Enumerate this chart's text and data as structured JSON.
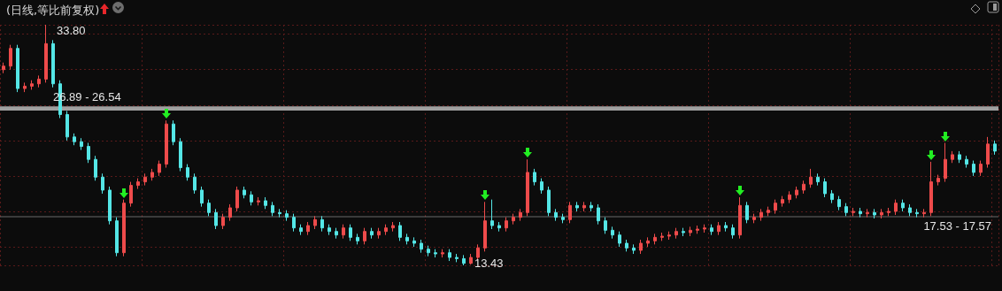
{
  "chart_data": {
    "type": "candlestick",
    "title": "(日线,等比前复权)",
    "categories": [
      null,
      null,
      null,
      null,
      null,
      null,
      null,
      null,
      null,
      null,
      null,
      null,
      null,
      null,
      null,
      null,
      null,
      null,
      null,
      null,
      null,
      null,
      null,
      null,
      null,
      null,
      null,
      null,
      null,
      null,
      null,
      null,
      null,
      null,
      null,
      null,
      null,
      null,
      null,
      null,
      null,
      null,
      null,
      null,
      null,
      null,
      null,
      null,
      null,
      null,
      null,
      null,
      null,
      null,
      null,
      null,
      null,
      null,
      null,
      null,
      null,
      null,
      null,
      null,
      null,
      null,
      null,
      null,
      null,
      null,
      null,
      null,
      null,
      null,
      null,
      null,
      null,
      null,
      null,
      null,
      null,
      null,
      null,
      null,
      null,
      null,
      null,
      null,
      null,
      null,
      null,
      null,
      null,
      null,
      null,
      null,
      null,
      null,
      null,
      null,
      null,
      null,
      null,
      null,
      null,
      null,
      null,
      null,
      null,
      null,
      null,
      null,
      null,
      null,
      null,
      null,
      null,
      null,
      null,
      null,
      null,
      null,
      null,
      null,
      null,
      null,
      null,
      null,
      null,
      null,
      null,
      null,
      null,
      null,
      null,
      null,
      null,
      null,
      null,
      null,
      null
    ],
    "ohlc": [
      [
        30.0,
        30.6,
        29.7,
        30.3
      ],
      [
        30.3,
        32.1,
        30.0,
        31.8
      ],
      [
        31.8,
        32.1,
        28.1,
        28.4
      ],
      [
        28.4,
        28.9,
        28.1,
        28.6
      ],
      [
        28.6,
        29.1,
        28.3,
        28.8
      ],
      [
        28.8,
        29.5,
        28.5,
        29.2
      ],
      [
        29.2,
        33.8,
        28.9,
        32.2
      ],
      [
        32.2,
        32.5,
        28.5,
        28.8
      ],
      [
        28.8,
        29.1,
        25.9,
        26.2
      ],
      [
        26.2,
        26.5,
        24.0,
        24.3
      ],
      [
        24.3,
        24.6,
        23.6,
        23.9
      ],
      [
        23.9,
        24.2,
        23.2,
        23.5
      ],
      [
        23.5,
        23.8,
        22.1,
        22.4
      ],
      [
        22.4,
        22.7,
        20.6,
        20.9
      ],
      [
        20.9,
        21.2,
        19.5,
        19.8
      ],
      [
        19.8,
        20.1,
        16.9,
        17.2
      ],
      [
        17.2,
        17.5,
        14.2,
        14.5
      ],
      [
        14.5,
        19.0,
        14.2,
        18.7
      ],
      [
        18.7,
        20.5,
        18.4,
        20.2
      ],
      [
        20.2,
        20.8,
        19.9,
        20.5
      ],
      [
        20.5,
        21.2,
        20.2,
        20.9
      ],
      [
        20.9,
        21.6,
        20.6,
        21.3
      ],
      [
        21.3,
        22.3,
        21.0,
        22.0
      ],
      [
        22.0,
        25.7,
        21.7,
        25.4
      ],
      [
        25.4,
        25.7,
        23.6,
        23.9
      ],
      [
        23.9,
        24.2,
        21.4,
        21.7
      ],
      [
        21.7,
        22.0,
        20.6,
        20.9
      ],
      [
        20.9,
        21.2,
        19.5,
        19.8
      ],
      [
        19.8,
        20.1,
        18.4,
        18.7
      ],
      [
        18.7,
        19.0,
        17.6,
        17.9
      ],
      [
        17.9,
        18.2,
        16.5,
        16.8
      ],
      [
        16.8,
        17.8,
        16.5,
        17.5
      ],
      [
        17.5,
        18.6,
        17.2,
        18.3
      ],
      [
        18.3,
        20.1,
        18.0,
        19.8
      ],
      [
        19.8,
        20.1,
        19.1,
        19.4
      ],
      [
        19.4,
        19.7,
        18.5,
        18.8
      ],
      [
        18.8,
        19.2,
        18.5,
        18.9
      ],
      [
        18.9,
        19.2,
        18.2,
        18.5
      ],
      [
        18.5,
        18.8,
        17.6,
        17.9
      ],
      [
        17.9,
        18.2,
        17.5,
        17.8
      ],
      [
        17.8,
        18.1,
        17.2,
        17.5
      ],
      [
        17.5,
        17.8,
        16.3,
        16.6
      ],
      [
        16.6,
        16.9,
        16.0,
        16.3
      ],
      [
        16.3,
        17.1,
        16.0,
        16.8
      ],
      [
        16.8,
        17.6,
        16.5,
        17.3
      ],
      [
        17.3,
        17.6,
        16.3,
        16.6
      ],
      [
        16.6,
        16.9,
        16.0,
        16.3
      ],
      [
        16.3,
        16.6,
        15.7,
        16.0
      ],
      [
        16.0,
        16.9,
        15.7,
        16.6
      ],
      [
        16.6,
        16.9,
        15.5,
        15.8
      ],
      [
        15.8,
        16.1,
        15.2,
        15.5
      ],
      [
        15.5,
        16.6,
        15.2,
        16.3
      ],
      [
        16.3,
        16.6,
        15.7,
        16.0
      ],
      [
        16.0,
        16.6,
        15.7,
        16.3
      ],
      [
        16.3,
        16.9,
        16.0,
        16.6
      ],
      [
        16.6,
        17.1,
        16.3,
        16.8
      ],
      [
        16.8,
        17.1,
        15.5,
        15.8
      ],
      [
        15.8,
        16.1,
        15.2,
        15.5
      ],
      [
        15.5,
        15.8,
        15.0,
        15.3
      ],
      [
        15.3,
        15.6,
        14.5,
        14.8
      ],
      [
        14.8,
        15.1,
        14.2,
        14.5
      ],
      [
        14.5,
        14.8,
        14.1,
        14.4
      ],
      [
        14.4,
        14.8,
        14.1,
        14.5
      ],
      [
        14.5,
        14.8,
        13.8,
        14.1
      ],
      [
        14.1,
        14.4,
        13.7,
        14.0
      ],
      [
        14.0,
        14.3,
        13.43,
        13.6
      ],
      [
        13.6,
        14.4,
        13.5,
        14.1
      ],
      [
        14.1,
        15.2,
        13.8,
        14.9
      ],
      [
        14.9,
        18.8,
        14.6,
        17.2
      ],
      [
        17.2,
        19.0,
        16.5,
        16.8
      ],
      [
        16.8,
        17.1,
        16.3,
        16.6
      ],
      [
        16.6,
        17.5,
        16.3,
        17.2
      ],
      [
        17.2,
        17.8,
        16.9,
        17.5
      ],
      [
        17.5,
        18.2,
        17.2,
        17.9
      ],
      [
        17.9,
        22.4,
        17.6,
        21.3
      ],
      [
        21.3,
        21.6,
        20.2,
        20.5
      ],
      [
        20.5,
        20.8,
        19.5,
        19.8
      ],
      [
        19.8,
        20.1,
        17.6,
        17.9
      ],
      [
        17.9,
        18.2,
        17.2,
        17.5
      ],
      [
        17.5,
        17.8,
        17.0,
        17.3
      ],
      [
        17.3,
        18.8,
        17.0,
        18.5
      ],
      [
        18.5,
        18.8,
        18.0,
        18.3
      ],
      [
        18.3,
        18.8,
        18.0,
        18.5
      ],
      [
        18.5,
        18.8,
        18.0,
        18.3
      ],
      [
        18.3,
        18.6,
        16.9,
        17.2
      ],
      [
        17.2,
        17.5,
        16.1,
        16.4
      ],
      [
        16.4,
        16.7,
        15.7,
        16.0
      ],
      [
        16.0,
        16.3,
        15.0,
        15.3
      ],
      [
        15.3,
        15.6,
        14.6,
        14.9
      ],
      [
        14.9,
        15.2,
        14.4,
        14.7
      ],
      [
        14.7,
        15.6,
        14.4,
        15.3
      ],
      [
        15.3,
        15.8,
        15.0,
        15.5
      ],
      [
        15.5,
        16.1,
        15.2,
        15.8
      ],
      [
        15.8,
        16.2,
        15.5,
        15.9
      ],
      [
        15.9,
        16.3,
        15.6,
        16.0
      ],
      [
        16.0,
        16.6,
        15.7,
        16.3
      ],
      [
        16.3,
        16.6,
        15.9,
        16.2
      ],
      [
        16.2,
        16.7,
        15.9,
        16.4
      ],
      [
        16.4,
        16.8,
        16.1,
        16.5
      ],
      [
        16.5,
        16.9,
        16.2,
        16.6
      ],
      [
        16.6,
        16.9,
        16.0,
        16.3
      ],
      [
        16.3,
        17.1,
        16.0,
        16.8
      ],
      [
        16.8,
        17.1,
        16.3,
        16.6
      ],
      [
        16.6,
        16.9,
        15.7,
        16.0
      ],
      [
        16.0,
        19.2,
        15.7,
        18.5
      ],
      [
        18.5,
        18.8,
        17.0,
        17.3
      ],
      [
        17.3,
        17.8,
        17.0,
        17.5
      ],
      [
        17.5,
        18.2,
        17.2,
        17.9
      ],
      [
        17.9,
        18.4,
        17.6,
        18.1
      ],
      [
        18.1,
        19.0,
        17.8,
        18.7
      ],
      [
        18.7,
        19.3,
        18.4,
        19.0
      ],
      [
        19.0,
        19.7,
        18.7,
        19.4
      ],
      [
        19.4,
        20.1,
        19.1,
        19.8
      ],
      [
        19.8,
        20.6,
        19.5,
        20.3
      ],
      [
        20.3,
        21.6,
        20.0,
        20.9
      ],
      [
        20.9,
        21.2,
        20.2,
        20.5
      ],
      [
        20.5,
        20.8,
        19.2,
        19.5
      ],
      [
        19.5,
        19.8,
        18.7,
        19.0
      ],
      [
        19.0,
        19.3,
        18.1,
        18.4
      ],
      [
        18.4,
        18.7,
        17.6,
        17.9
      ],
      [
        17.9,
        18.3,
        17.6,
        18.0
      ],
      [
        18.0,
        18.3,
        17.5,
        17.8
      ],
      [
        17.8,
        18.2,
        17.5,
        17.9
      ],
      [
        17.9,
        18.2,
        17.4,
        17.7
      ],
      [
        17.7,
        18.2,
        17.4,
        17.9
      ],
      [
        17.9,
        18.3,
        17.6,
        18.0
      ],
      [
        18.0,
        19.0,
        17.7,
        18.7
      ],
      [
        18.7,
        19.0,
        18.0,
        18.3
      ],
      [
        18.3,
        18.6,
        17.6,
        17.9
      ],
      [
        17.9,
        18.2,
        17.5,
        17.8
      ],
      [
        17.8,
        18.2,
        17.5,
        17.9
      ],
      [
        17.9,
        22.2,
        17.6,
        20.5
      ],
      [
        20.5,
        21.1,
        20.2,
        20.8
      ],
      [
        20.8,
        23.8,
        20.5,
        22.4
      ],
      [
        22.4,
        23.1,
        22.1,
        22.8
      ],
      [
        22.8,
        23.1,
        22.1,
        22.4
      ],
      [
        22.4,
        22.7,
        21.7,
        22.0
      ],
      [
        22.0,
        22.3,
        21.0,
        21.3
      ],
      [
        21.3,
        22.3,
        21.0,
        22.0
      ],
      [
        22.0,
        24.3,
        21.7,
        23.7
      ],
      [
        23.7,
        24.0,
        22.8,
        23.1
      ]
    ],
    "colors": [
      "#ee4b4b",
      "#ee4b4b",
      "#54e6e6",
      "#ee4b4b",
      "#ee4b4b",
      "#ee4b4b",
      "#ee4b4b",
      "#54e6e6",
      "#54e6e6",
      "#54e6e6",
      "#54e6e6",
      "#54e6e6",
      "#54e6e6",
      "#54e6e6",
      "#54e6e6",
      "#54e6e6",
      "#54e6e6",
      "#ee4b4b",
      "#ee4b4b",
      "#ee4b4b",
      "#ee4b4b",
      "#ee4b4b",
      "#ee4b4b",
      "#ee4b4b",
      "#54e6e6",
      "#54e6e6",
      "#54e6e6",
      "#54e6e6",
      "#54e6e6",
      "#54e6e6",
      "#54e6e6",
      "#ee4b4b",
      "#ee4b4b",
      "#ee4b4b",
      "#54e6e6",
      "#54e6e6",
      "#ee4b4b",
      "#54e6e6",
      "#54e6e6",
      "#54e6e6",
      "#54e6e6",
      "#54e6e6",
      "#54e6e6",
      "#ee4b4b",
      "#ee4b4b",
      "#54e6e6",
      "#54e6e6",
      "#54e6e6",
      "#ee4b4b",
      "#54e6e6",
      "#54e6e6",
      "#ee4b4b",
      "#54e6e6",
      "#ee4b4b",
      "#ee4b4b",
      "#ee4b4b",
      "#54e6e6",
      "#54e6e6",
      "#54e6e6",
      "#54e6e6",
      "#54e6e6",
      "#54e6e6",
      "#ee4b4b",
      "#54e6e6",
      "#54e6e6",
      "#54e6e6",
      "#ee4b4b",
      "#ee4b4b",
      "#ee4b4b",
      "#54e6e6",
      "#54e6e6",
      "#ee4b4b",
      "#ee4b4b",
      "#ee4b4b",
      "#ee4b4b",
      "#54e6e6",
      "#54e6e6",
      "#54e6e6",
      "#54e6e6",
      "#54e6e6",
      "#ee4b4b",
      "#54e6e6",
      "#ee4b4b",
      "#54e6e6",
      "#54e6e6",
      "#54e6e6",
      "#54e6e6",
      "#54e6e6",
      "#54e6e6",
      "#54e6e6",
      "#ee4b4b",
      "#ee4b4b",
      "#ee4b4b",
      "#ee4b4b",
      "#ee4b4b",
      "#ee4b4b",
      "#54e6e6",
      "#ee4b4b",
      "#ee4b4b",
      "#ee4b4b",
      "#54e6e6",
      "#ee4b4b",
      "#54e6e6",
      "#54e6e6",
      "#ee4b4b",
      "#54e6e6",
      "#ee4b4b",
      "#ee4b4b",
      "#ee4b4b",
      "#ee4b4b",
      "#ee4b4b",
      "#ee4b4b",
      "#ee4b4b",
      "#ee4b4b",
      "#ee4b4b",
      "#54e6e6",
      "#54e6e6",
      "#54e6e6",
      "#54e6e6",
      "#54e6e6",
      "#ee4b4b",
      "#54e6e6",
      "#ee4b4b",
      "#54e6e6",
      "#ee4b4b",
      "#ee4b4b",
      "#ee4b4b",
      "#54e6e6",
      "#54e6e6",
      "#54e6e6",
      "#ee4b4b",
      "#ee4b4b",
      "#ee4b4b",
      "#ee4b4b",
      "#ee4b4b",
      "#54e6e6",
      "#54e6e6",
      "#54e6e6",
      "#ee4b4b",
      "#ee4b4b",
      "#54e6e6"
    ],
    "bands": [
      {
        "axis": "y",
        "from": 26.54,
        "to": 26.89,
        "label": "26.89 - 26.54",
        "color": "#a0a0a0"
      },
      {
        "axis": "y",
        "from": 17.53,
        "to": 17.57,
        "label": "17.53 - 17.57",
        "color": "#c8c8c8"
      }
    ],
    "annotations": [
      "33.80",
      "13.43"
    ],
    "grid": true,
    "tick_labels": false
  }
}
